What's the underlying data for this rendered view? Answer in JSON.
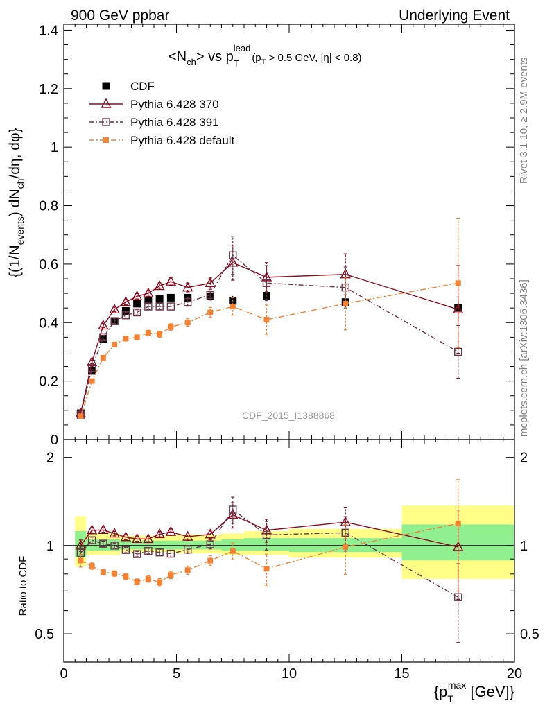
{
  "header": {
    "left": "900 GeV ppbar",
    "right": "Underlying Event"
  },
  "side_labels": {
    "rivet": "Rivet 3.1.10, ≥ 2.9M events",
    "mcplots": "mcplots.cern.ch [arXiv:1306.3436]"
  },
  "watermark": "CDF_2015_I1388868",
  "chart_data": {
    "type": "scatter",
    "title": {
      "a": "<N",
      "b": "ch",
      "c": "> vs p",
      "d": "T",
      "e": "lead",
      "f": "(p",
      "g": "T",
      "h": " > 0.5 GeV, |η| < 0.8)"
    },
    "ylabel": {
      "a": "{(1/N",
      "b": "events",
      "c": ") dN",
      "d": "ch",
      "e": "/dη, dφ}"
    },
    "xlabel": {
      "a": "{p",
      "b": "T",
      "c": "max",
      "d": " [GeV]}"
    },
    "ratio_ylabel": "Ratio to CDF",
    "xlim": [
      0,
      20
    ],
    "ylim": [
      0,
      1.42
    ],
    "ratio_ylim": [
      0.4,
      2.3
    ],
    "ratio_log": true,
    "x_ticks": [
      "0",
      "5",
      "10",
      "15",
      "20"
    ],
    "y_ticks": [
      "0",
      "0.2",
      "0.4",
      "0.6",
      "0.8",
      "1",
      "1.2",
      "1.4"
    ],
    "ratio_ticks": [
      "0.5",
      "1",
      "2"
    ],
    "legend": {
      "placement": "top-left",
      "entries": [
        "CDF",
        "Pythia 6.428 370",
        "Pythia 6.428 391",
        "Pythia 6.428 default"
      ]
    },
    "x": [
      0.75,
      1.25,
      1.75,
      2.25,
      2.75,
      3.25,
      3.75,
      4.25,
      4.75,
      5.5,
      6.5,
      7.5,
      9.0,
      12.5,
      17.5
    ],
    "series": [
      {
        "name": "CDF",
        "color": "#000000",
        "marker": "square-filled",
        "values": [
          0.09,
          0.235,
          0.345,
          0.405,
          0.44,
          0.465,
          0.475,
          0.48,
          0.485,
          0.485,
          0.49,
          0.475,
          0.492,
          0.47,
          0.45
        ],
        "err": [
          0.005,
          0.006,
          0.007,
          0.008,
          0.009,
          0.01,
          0.01,
          0.011,
          0.012,
          0.012,
          0.014,
          0.016,
          0.018,
          0.022,
          0.04
        ]
      },
      {
        "name": "Pythia 6.428 370",
        "color": "#8b0a1e",
        "marker": "triangle-open",
        "dash": "",
        "values": [
          0.09,
          0.265,
          0.39,
          0.445,
          0.47,
          0.49,
          0.5,
          0.525,
          0.54,
          0.52,
          0.535,
          0.605,
          0.555,
          0.565,
          0.445
        ],
        "err": [
          0.004,
          0.006,
          0.007,
          0.008,
          0.009,
          0.009,
          0.01,
          0.011,
          0.013,
          0.015,
          0.018,
          0.06,
          0.05,
          0.07,
          0.15
        ]
      },
      {
        "name": "Pythia 6.428 391",
        "color": "#6b3448",
        "marker": "square-open",
        "dash": "7,3,2,3",
        "values": [
          0.085,
          0.245,
          0.35,
          0.405,
          0.425,
          0.435,
          0.455,
          0.455,
          0.455,
          0.47,
          0.495,
          0.63,
          0.535,
          0.52,
          0.3
        ],
        "err": [
          0.004,
          0.006,
          0.007,
          0.008,
          0.009,
          0.009,
          0.01,
          0.011,
          0.012,
          0.014,
          0.018,
          0.065,
          0.06,
          0.07,
          0.09
        ]
      },
      {
        "name": "Pythia 6.428 default",
        "color": "#f58232",
        "marker": "square-filled-small",
        "dash": "8,3,2,3",
        "values": [
          0.08,
          0.2,
          0.28,
          0.325,
          0.345,
          0.35,
          0.365,
          0.36,
          0.385,
          0.4,
          0.435,
          0.455,
          0.41,
          0.465,
          0.535
        ],
        "err": [
          0.004,
          0.005,
          0.006,
          0.007,
          0.008,
          0.008,
          0.009,
          0.01,
          0.011,
          0.013,
          0.017,
          0.03,
          0.05,
          0.09,
          0.22
        ]
      }
    ],
    "ratio_bands": [
      {
        "x0": 0.5,
        "x1": 1.0,
        "y_lo": 0.85,
        "y_hi": 1.26,
        "g_lo": 0.91,
        "g_hi": 1.12
      },
      {
        "x0": 1.0,
        "x1": 2.5,
        "y_lo": 0.93,
        "y_hi": 1.1,
        "g_lo": 0.96,
        "g_hi": 1.05
      },
      {
        "x0": 2.5,
        "x1": 5.0,
        "y_lo": 0.95,
        "y_hi": 1.08,
        "g_lo": 0.97,
        "g_hi": 1.04
      },
      {
        "x0": 5.0,
        "x1": 7.0,
        "y_lo": 0.94,
        "y_hi": 1.09,
        "g_lo": 0.97,
        "g_hi": 1.04
      },
      {
        "x0": 7.0,
        "x1": 8.0,
        "y_lo": 0.93,
        "y_hi": 1.1,
        "g_lo": 0.96,
        "g_hi": 1.05
      },
      {
        "x0": 8.0,
        "x1": 10.0,
        "y_lo": 0.93,
        "y_hi": 1.12,
        "g_lo": 0.96,
        "g_hi": 1.06
      },
      {
        "x0": 10.0,
        "x1": 15.0,
        "y_lo": 0.91,
        "y_hi": 1.14,
        "g_lo": 0.95,
        "g_hi": 1.06
      },
      {
        "x0": 15.0,
        "x1": 20.0,
        "y_lo": 0.77,
        "y_hi": 1.37,
        "g_lo": 0.89,
        "g_hi": 1.18
      }
    ]
  }
}
